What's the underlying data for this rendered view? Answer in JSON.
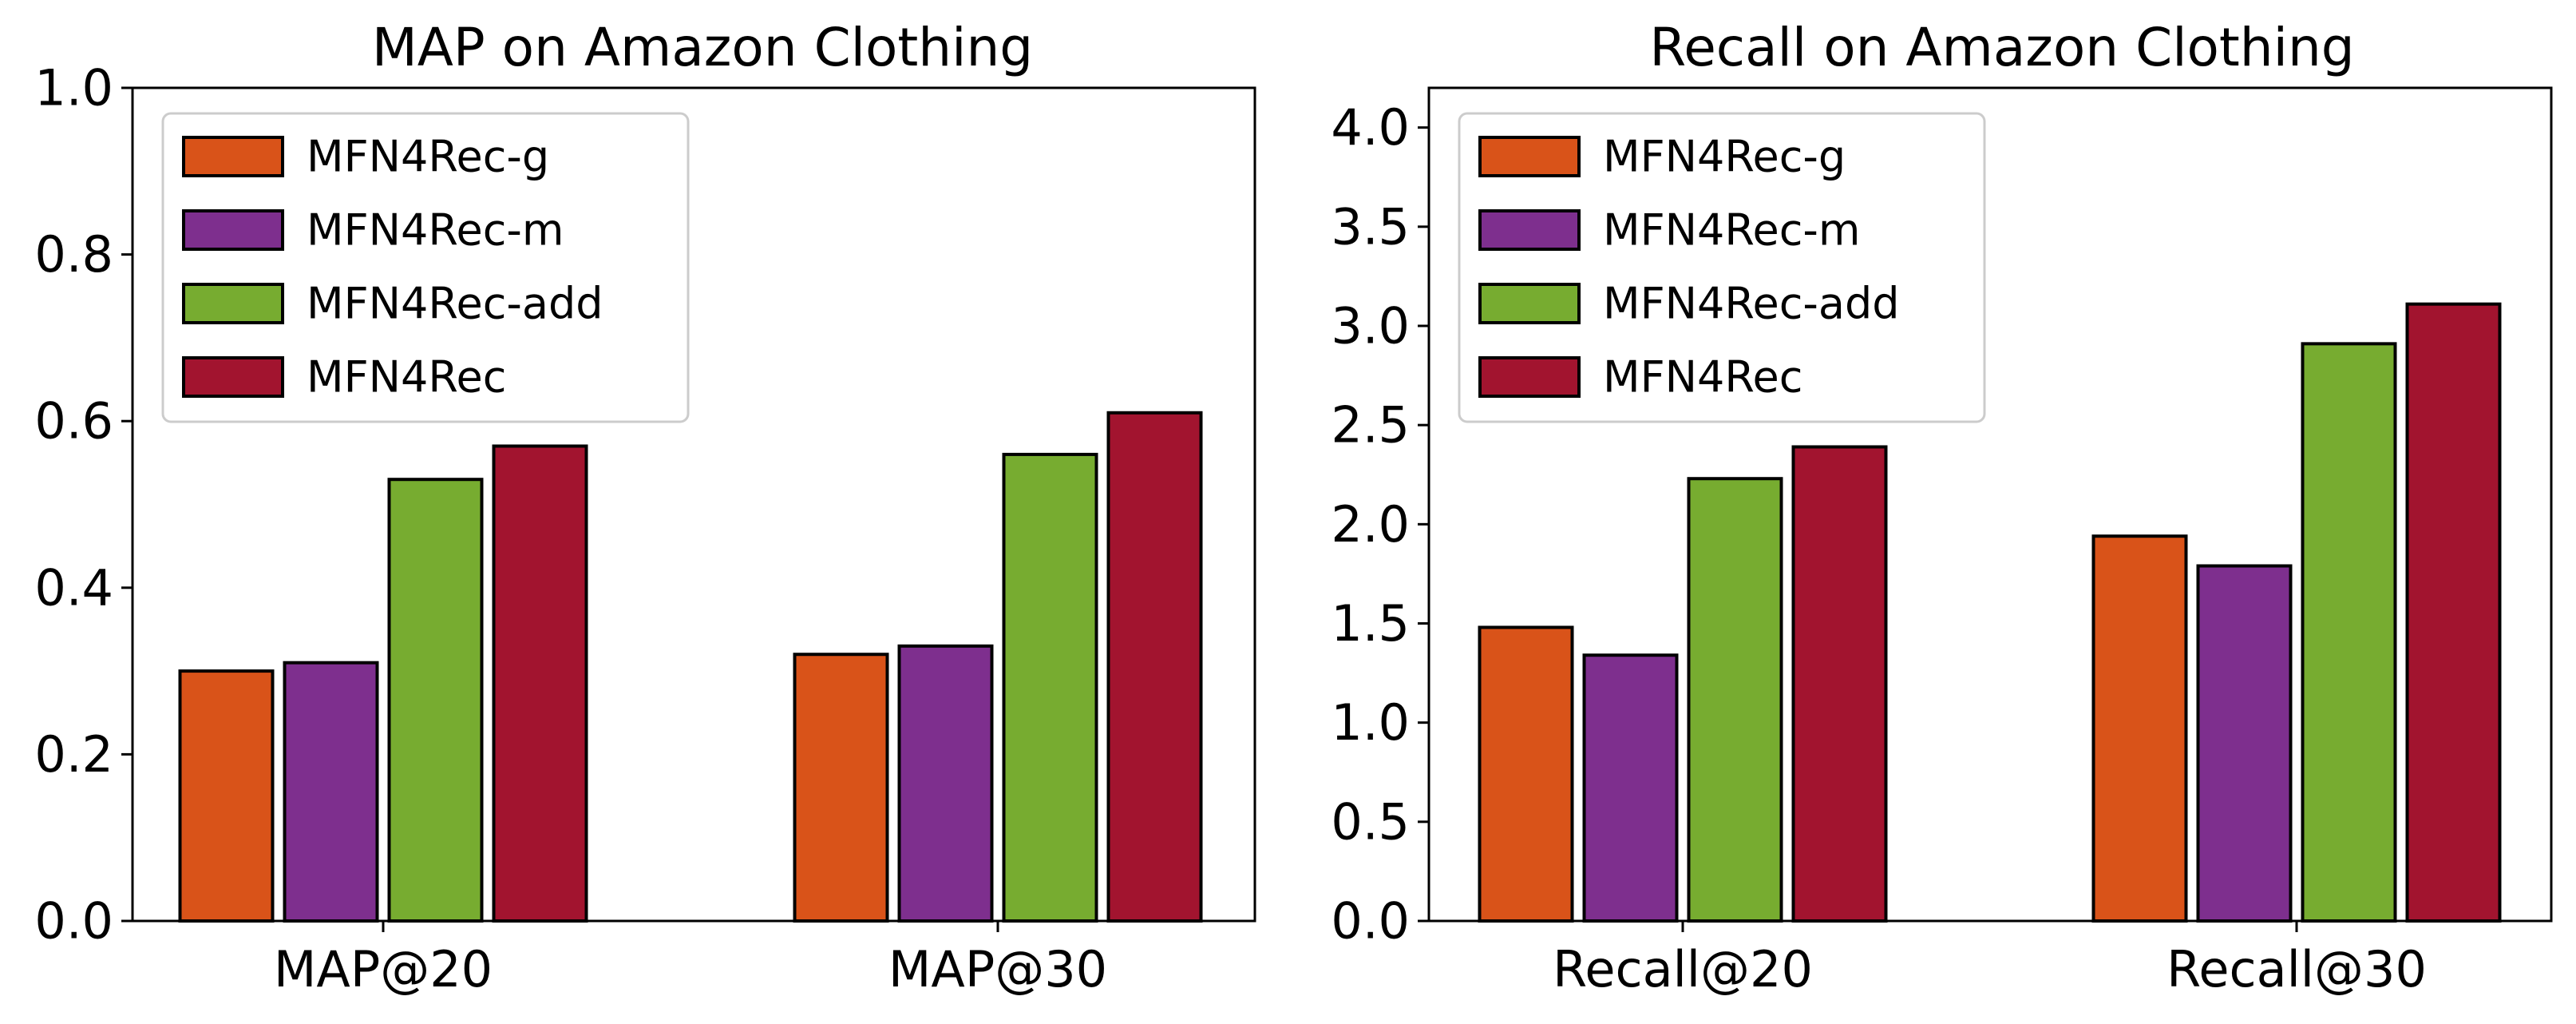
{
  "chart_data": [
    {
      "type": "bar",
      "title": "MAP on Amazon Clothing",
      "categories": [
        "MAP@20",
        "MAP@30"
      ],
      "ylim": [
        0,
        1.0
      ],
      "yticks": [
        "0.0",
        "0.2",
        "0.4",
        "0.6",
        "0.8",
        "1.0"
      ],
      "legend_position": "upper-left",
      "series": [
        {
          "name": "MFN4Rec-g",
          "color": "#d95319",
          "values": [
            0.3,
            0.32
          ]
        },
        {
          "name": "MFN4Rec-m",
          "color": "#7e2f8e",
          "values": [
            0.31,
            0.33
          ]
        },
        {
          "name": "MFN4Rec-add",
          "color": "#77ac30",
          "values": [
            0.53,
            0.56
          ]
        },
        {
          "name": "MFN4Rec",
          "color": "#a2142f",
          "values": [
            0.57,
            0.61
          ]
        }
      ]
    },
    {
      "type": "bar",
      "title": "Recall on Amazon Clothing",
      "categories": [
        "Recall@20",
        "Recall@30"
      ],
      "ylim": [
        0,
        4.2
      ],
      "yticks": [
        "0.0",
        "0.5",
        "1.0",
        "1.5",
        "2.0",
        "2.5",
        "3.0",
        "3.5",
        "4.0"
      ],
      "legend_position": "upper-left",
      "series": [
        {
          "name": "MFN4Rec-g",
          "color": "#d95319",
          "values": [
            1.48,
            1.94
          ]
        },
        {
          "name": "MFN4Rec-m",
          "color": "#7e2f8e",
          "values": [
            1.34,
            1.79
          ]
        },
        {
          "name": "MFN4Rec-add",
          "color": "#77ac30",
          "values": [
            2.23,
            2.91
          ]
        },
        {
          "name": "MFN4Rec",
          "color": "#a2142f",
          "values": [
            2.39,
            3.11
          ]
        }
      ]
    }
  ]
}
